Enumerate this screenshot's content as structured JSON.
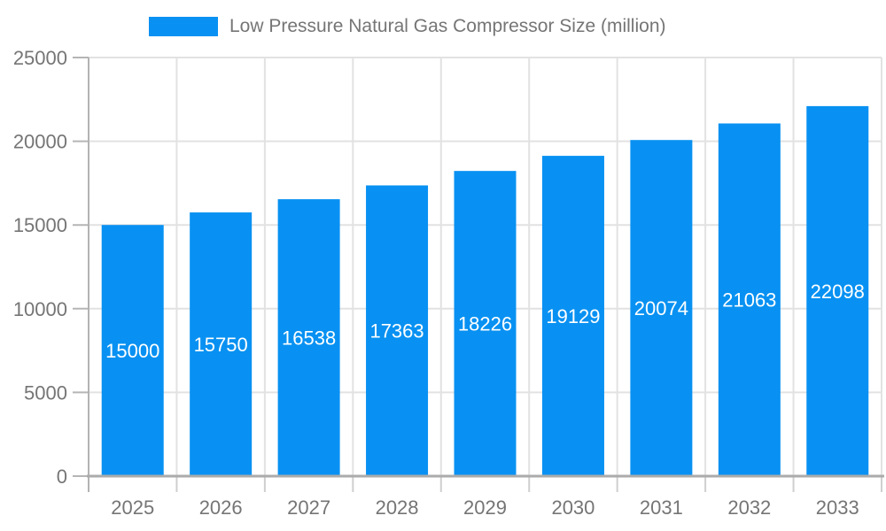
{
  "chart_data": {
    "type": "bar",
    "title": "Low Pressure Natural Gas Compressor Size (million)",
    "series_name": "Low Pressure Natural Gas Compressor Size (million)",
    "categories": [
      "2025",
      "2026",
      "2027",
      "2028",
      "2029",
      "2030",
      "2031",
      "2032",
      "2033"
    ],
    "values": [
      15000,
      15750,
      16538,
      17363,
      18226,
      19129,
      20074,
      21063,
      22098
    ],
    "xlabel": "",
    "ylabel": "",
    "ylim": [
      0,
      25000
    ],
    "yticks": [
      0,
      5000,
      10000,
      15000,
      20000,
      25000
    ],
    "grid": true,
    "legend_position": "top",
    "value_label_position": "inside-middle"
  },
  "colors": {
    "bar": "#0891f2",
    "axis_text": "#757575",
    "grid": "#e2e2e2",
    "x_axis_line": "#ababab",
    "y_axis_line": "#b3b3b3",
    "y_tick": "#b5b5b5",
    "x_tick": "#cfcfcf",
    "value_label": "#ffffff"
  }
}
